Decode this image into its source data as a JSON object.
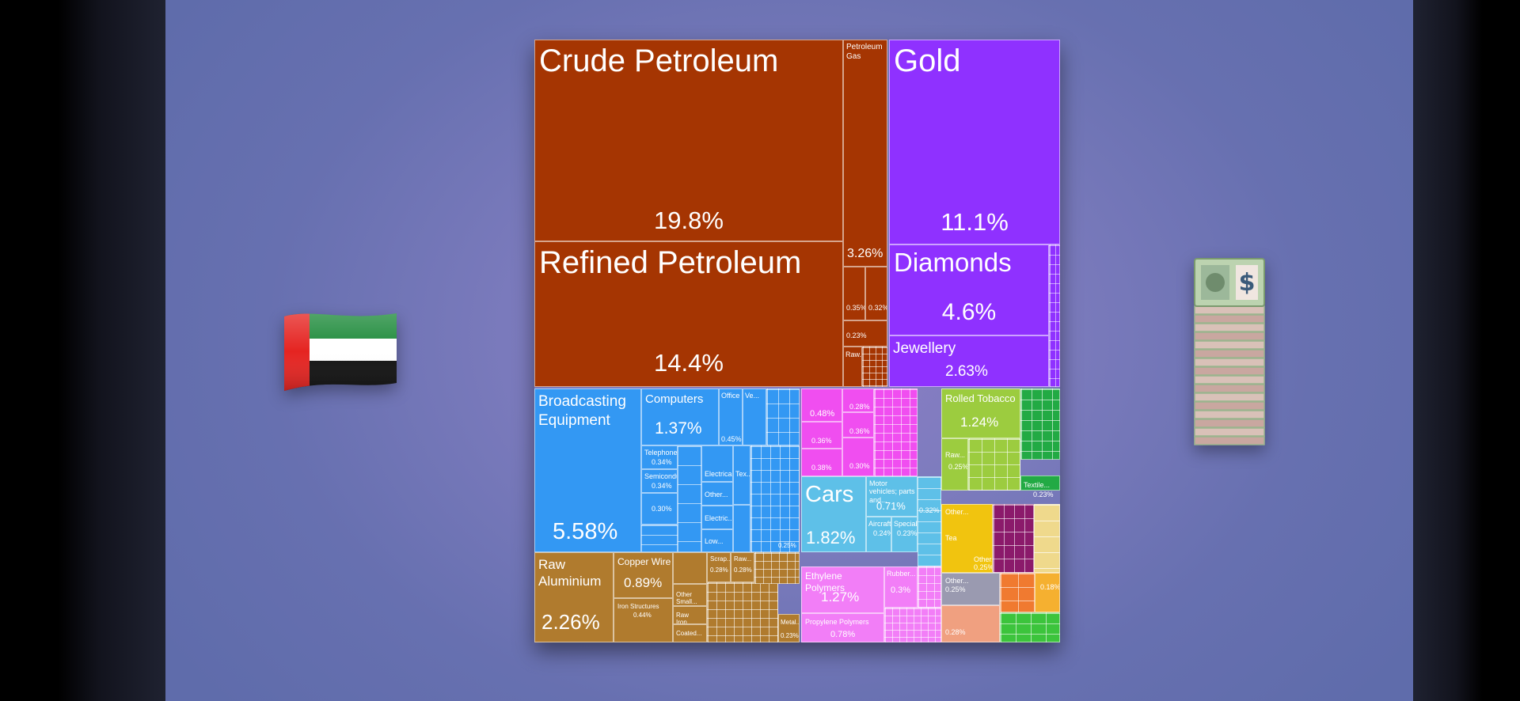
{
  "chart_data": {
    "type": "treemap",
    "items": [
      {
        "name": "Crude Petroleum",
        "value": 19.8,
        "value_label": "19.8%",
        "color": "#a53502"
      },
      {
        "name": "Refined Petroleum",
        "value": 14.4,
        "value_label": "14.4%",
        "color": "#a53502"
      },
      {
        "name": "Petroleum Gas",
        "value": 3.26,
        "value_label": "3.26%",
        "color": "#a53502"
      },
      {
        "name": "Gold",
        "value": 11.1,
        "value_label": "11.1%",
        "color": "#8f31ff"
      },
      {
        "name": "Diamonds",
        "value": 4.6,
        "value_label": "4.6%",
        "color": "#8f31ff"
      },
      {
        "name": "Jewellery",
        "value": 2.63,
        "value_label": "2.63%",
        "color": "#8f31ff"
      },
      {
        "name": "Broadcasting Equipment",
        "value": 5.58,
        "value_label": "5.58%",
        "color": "#3398f3"
      },
      {
        "name": "Computers",
        "value": 1.37,
        "value_label": "1.37%",
        "color": "#3398f3"
      },
      {
        "name": "Cars",
        "value": 1.82,
        "value_label": "1.82%",
        "color": "#5ec0e8"
      },
      {
        "name": "Motor vehicles; parts and...",
        "value": 0.71,
        "value_label": "0.71%",
        "color": "#5ec0e8"
      },
      {
        "name": "Rolled Tobacco",
        "value": 1.24,
        "value_label": "1.24%",
        "color": "#9ccc3f"
      },
      {
        "name": "Raw Aluminium",
        "value": 2.26,
        "value_label": "2.26%",
        "color": "#b07b2e"
      },
      {
        "name": "Copper Wire",
        "value": 0.89,
        "value_label": "0.89%",
        "color": "#b07b2e"
      },
      {
        "name": "Ethylene Polymers",
        "value": 1.27,
        "value_label": "1.27%",
        "color": "#f27ef7"
      },
      {
        "name": "Propylene Polymers",
        "value": 0.78,
        "value_label": "0.78%",
        "color": "#f27ef7"
      }
    ],
    "small_labels": {
      "petroleum_gas_name": "Petroleum Gas",
      "pet_a": "0.35%",
      "pet_b": "0.32%",
      "pet_c": "0.23%",
      "pet_d": "Raw...",
      "comp_a": "Telephones",
      "comp_b": "0.34%",
      "comp_c": "Semiconductor",
      "comp_d": "0.34%",
      "comp_e": "0.30%",
      "comp_f": "0.45%",
      "comp_g": "Electrical...",
      "comp_h": "Other...",
      "comp_i": "Tex...",
      "comp_j": "Electric...",
      "comp_k": "Low...",
      "comp_l": "0.25%",
      "comp_m": "Office",
      "comp_n": "Ve...",
      "chem_a": "0.48%",
      "chem_b": "0.28%",
      "chem_c": "0.36%",
      "chem_d": "0.36%",
      "chem_e": "0.38%",
      "chem_f": "0.30%",
      "tob_a": "Raw...",
      "tob_b": "0.25%",
      "tex_a": "Textile...",
      "tex_b": "0.23%",
      "cars_a": "Aircraft...",
      "cars_b": "0.24%",
      "cars_c": "Special...",
      "cars_d": "0.23%",
      "cars_e": "0.32%",
      "met_a": "Iron Structures",
      "met_b": "0.44%",
      "met_c": "Other Small...",
      "met_d": "Raw Iron...",
      "met_e": "Coated...",
      "met_f": "Scrap...",
      "met_g": "0.28%",
      "met_h": "Raw...",
      "met_i": "0.28%",
      "met_j": "Metal...",
      "met_k": "0.23%",
      "poly_a": "Rubber...",
      "poly_b": "0.3%",
      "misc_a": "Other...",
      "misc_b": "Tea",
      "misc_c": "Other...",
      "misc_d": "0.25%",
      "misc_e": "Other...",
      "misc_f": "0.25%",
      "misc_g": "0.28%",
      "misc_h": "0.18%"
    }
  },
  "colors": {
    "mineral": "#a53502",
    "precious": "#8f31ff",
    "machines": "#3398f3",
    "chemicals": "#f04ef0",
    "transport": "#5ec0e8",
    "food": "#9ccc3f",
    "textiles": "#22aa44",
    "metals": "#b07b2e",
    "plastics": "#f27ef7"
  },
  "icons": {
    "left": "uae-flag-icon",
    "right": "money-stack-icon"
  }
}
